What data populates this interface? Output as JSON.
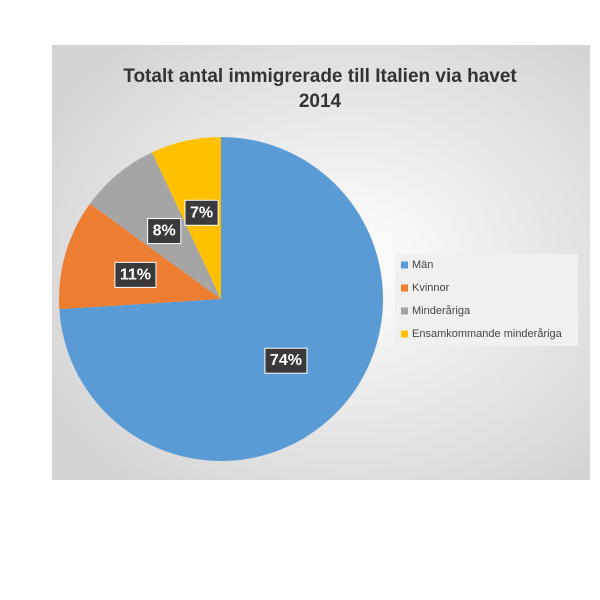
{
  "chart_data": {
    "type": "pie",
    "title": "Totalt antal immigrerade till Italien via havet 2014",
    "categories": [
      "Män",
      "Kvinnor",
      "Minderåriga",
      "Ensamkommande minderåriga"
    ],
    "values": [
      74,
      11,
      8,
      7
    ],
    "value_labels": [
      "74%",
      "11%",
      "8%",
      "7%"
    ],
    "colors": [
      "#5b9bd5",
      "#ed7d31",
      "#a5a5a5",
      "#ffc000"
    ],
    "legend": "right"
  }
}
